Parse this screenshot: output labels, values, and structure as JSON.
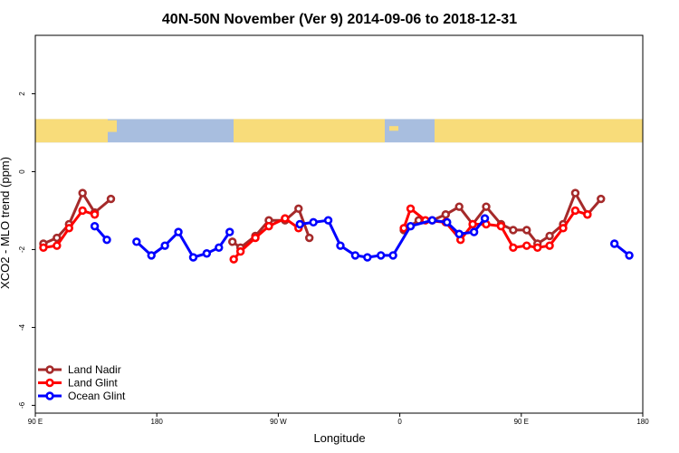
{
  "chart_data": {
    "type": "line",
    "title": "40N-50N November (Ver 9)   2014-09-06 to 2018-12-31",
    "xlabel": "Longitude",
    "ylabel": "XCO2 - MLO trend (ppm)",
    "x_axis": {
      "domain": [
        90,
        450
      ],
      "ticks": [
        {
          "value": 90,
          "label": "90 E"
        },
        {
          "value": 180,
          "label": "180"
        },
        {
          "value": 270,
          "label": "90 W"
        },
        {
          "value": 360,
          "label": "0"
        },
        {
          "value": 450,
          "label": "90 E"
        },
        {
          "value": 540,
          "label": "180"
        }
      ],
      "xlim": [
        90,
        540
      ]
    },
    "y_axis": {
      "ticks": [
        2,
        0,
        -2,
        -4,
        -6
      ],
      "ylim": [
        -6.2,
        3.5
      ]
    },
    "map_strip": {
      "ymin": 0.75,
      "ymax": 1.35,
      "land_color": "#f8dc7a",
      "ocean_color": "#a8bedf"
    },
    "legend_position": "bottom-left",
    "series": [
      {
        "name": "Land Nadir",
        "color": "#a52a2a",
        "segments": [
          [
            [
              96,
              -1.85
            ],
            [
              106,
              -1.7
            ],
            [
              115,
              -1.35
            ],
            [
              125,
              -0.55
            ],
            [
              134,
              -1.05
            ],
            [
              146,
              -0.7
            ]
          ],
          [
            [
              236,
              -1.8
            ],
            [
              242,
              -1.95
            ],
            [
              253,
              -1.65
            ],
            [
              263,
              -1.25
            ],
            [
              275,
              -1.25
            ],
            [
              285,
              -0.95
            ],
            [
              293,
              -1.7
            ]
          ],
          [
            [
              363,
              -1.5
            ],
            [
              374,
              -1.25
            ],
            [
              384,
              -1.25
            ],
            [
              394,
              -1.1
            ],
            [
              404,
              -0.9
            ],
            [
              414,
              -1.35
            ],
            [
              424,
              -0.9
            ],
            [
              435,
              -1.35
            ],
            [
              444,
              -1.5
            ],
            [
              454,
              -1.5
            ],
            [
              462,
              -1.85
            ],
            [
              471,
              -1.65
            ],
            [
              481,
              -1.35
            ],
            [
              490,
              -0.55
            ],
            [
              499,
              -1.1
            ],
            [
              509,
              -0.7
            ]
          ]
        ]
      },
      {
        "name": "Land Glint",
        "color": "#ff0000",
        "segments": [
          [
            [
              96,
              -1.95
            ],
            [
              106,
              -1.9
            ],
            [
              115,
              -1.45
            ],
            [
              125,
              -1.0
            ],
            [
              134,
              -1.1
            ]
          ],
          [
            [
              237,
              -2.25
            ],
            [
              242,
              -2.05
            ],
            [
              253,
              -1.7
            ],
            [
              263,
              -1.4
            ],
            [
              275,
              -1.2
            ],
            [
              285,
              -1.45
            ]
          ],
          [
            [
              363,
              -1.45
            ],
            [
              368,
              -0.95
            ],
            [
              379,
              -1.25
            ],
            [
              394,
              -1.3
            ],
            [
              405,
              -1.75
            ],
            [
              414,
              -1.35
            ],
            [
              424,
              -1.35
            ],
            [
              435,
              -1.4
            ],
            [
              444,
              -1.95
            ],
            [
              454,
              -1.9
            ],
            [
              462,
              -1.95
            ],
            [
              471,
              -1.9
            ],
            [
              481,
              -1.45
            ],
            [
              490,
              -1.0
            ],
            [
              499,
              -1.1
            ]
          ]
        ]
      },
      {
        "name": "Ocean Glint",
        "color": "#0000ff",
        "segments": [
          [
            [
              134,
              -1.4
            ],
            [
              143,
              -1.75
            ]
          ],
          [
            [
              165,
              -1.8
            ],
            [
              176,
              -2.15
            ],
            [
              186,
              -1.9
            ],
            [
              196,
              -1.55
            ],
            [
              207,
              -2.2
            ],
            [
              217,
              -2.1
            ],
            [
              226,
              -1.95
            ],
            [
              234,
              -1.55
            ]
          ],
          [
            [
              286,
              -1.35
            ],
            [
              296,
              -1.3
            ],
            [
              307,
              -1.25
            ],
            [
              316,
              -1.9
            ],
            [
              327,
              -2.15
            ],
            [
              336,
              -2.2
            ],
            [
              346,
              -2.15
            ],
            [
              355,
              -2.15
            ],
            [
              368,
              -1.4
            ],
            [
              384,
              -1.25
            ],
            [
              395,
              -1.3
            ],
            [
              404,
              -1.6
            ],
            [
              415,
              -1.55
            ],
            [
              423,
              -1.2
            ]
          ],
          [
            [
              519,
              -1.85
            ],
            [
              530,
              -2.15
            ]
          ]
        ]
      }
    ]
  }
}
